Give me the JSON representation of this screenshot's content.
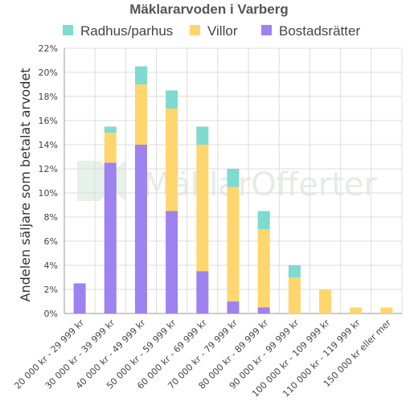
{
  "chart_data": {
    "type": "bar",
    "stacked": true,
    "title": "Mäklararvoden i Varberg",
    "ylabel": "Andelen säljare som betalat arvodet",
    "xlabel": "",
    "ylim": [
      0,
      22
    ],
    "yticks": [
      0,
      2,
      4,
      6,
      8,
      10,
      12,
      14,
      16,
      18,
      20,
      22
    ],
    "ytick_suffix": "%",
    "grid": true,
    "legend_position": "top",
    "watermark": "MäklarOfferter",
    "categories": [
      "20 000 kr - 29 999 kr",
      "30 000 kr - 39 999 kr",
      "40 000 kr - 49 999 kr",
      "50 000 kr - 59 999 kr",
      "60 000 kr - 69 999 kr",
      "70 000 kr - 79 999 kr",
      "80 000 kr - 89 999 kr",
      "90 000 kr - 99 999 kr",
      "100 000 kr - 109 999 kr",
      "110 000 kr - 119 999 kr",
      "150 000 kr eller mer"
    ],
    "series": [
      {
        "name": "Bostadsrätter",
        "color": "#9d82f0",
        "values": [
          2.5,
          12.5,
          14,
          8.5,
          3.5,
          1,
          0.5,
          0,
          0,
          0,
          0
        ]
      },
      {
        "name": "Villor",
        "color": "#ffd66e",
        "values": [
          0,
          2.5,
          5,
          8.5,
          10.5,
          9.5,
          6.5,
          3,
          2,
          0.5,
          0.5
        ]
      },
      {
        "name": "Radhus/parhus",
        "color": "#7fdad0",
        "values": [
          0,
          0.5,
          1.5,
          1.5,
          1.5,
          1.5,
          1.5,
          1,
          0,
          0,
          0
        ]
      }
    ],
    "legend_order": [
      "Radhus/parhus",
      "Villor",
      "Bostadsrätter"
    ]
  }
}
